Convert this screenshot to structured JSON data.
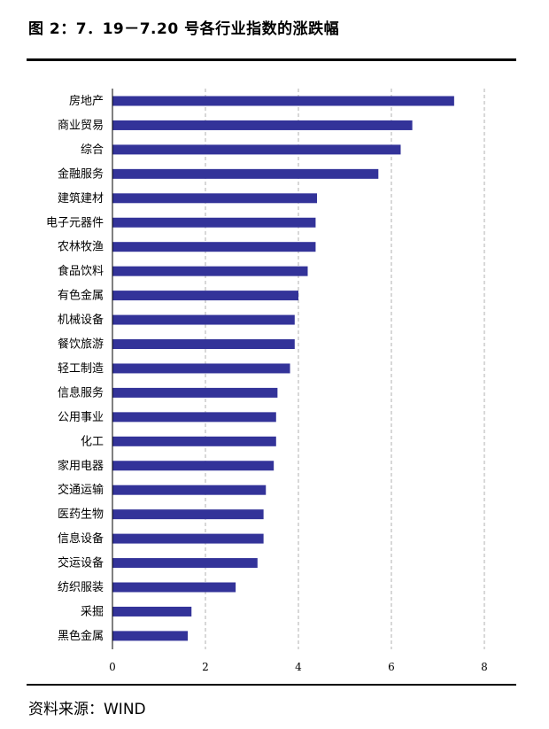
{
  "header": {
    "title": "图 2：7．19－7.20 号各行业指数的涨跌幅"
  },
  "footer": {
    "source": "资料来源：WIND"
  },
  "colors": {
    "bar": "#333399",
    "grid": "#b0b0b0",
    "axis": "#000000"
  },
  "chart_data": {
    "type": "bar",
    "orientation": "horizontal",
    "title": "7．19－7.20 号各行业指数的涨跌幅",
    "xlabel": "",
    "ylabel": "",
    "xlim": [
      0,
      8
    ],
    "xticks": [
      0,
      2,
      4,
      6,
      8
    ],
    "grid": "vertical dashed",
    "categories": [
      "房地产",
      "商业贸易",
      "综合",
      "金融服务",
      "建筑建材",
      "电子元器件",
      "农林牧渔",
      "食品饮料",
      "有色金属",
      "机械设备",
      "餐饮旅游",
      "轻工制造",
      "信息服务",
      "公用事业",
      "化工",
      "家用电器",
      "交通运输",
      "医药生物",
      "信息设备",
      "交运设备",
      "纺织服装",
      "采掘",
      "黑色金属"
    ],
    "values": [
      7.35,
      6.45,
      6.2,
      5.72,
      4.4,
      4.37,
      4.37,
      4.2,
      4.0,
      3.92,
      3.92,
      3.82,
      3.55,
      3.52,
      3.52,
      3.47,
      3.3,
      3.25,
      3.25,
      3.12,
      2.65,
      1.7,
      1.62
    ]
  }
}
